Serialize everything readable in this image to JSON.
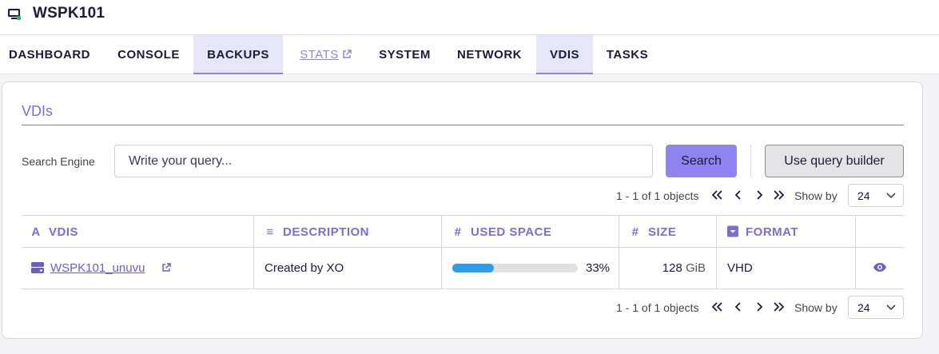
{
  "host": {
    "name": "WSPK101",
    "icon": "vm-console-icon"
  },
  "tabs": [
    {
      "label": "DASHBOARD",
      "active": false
    },
    {
      "label": "CONSOLE",
      "active": false
    },
    {
      "label": "BACKUPS",
      "active": true
    },
    {
      "label": "STATS",
      "active": false,
      "external": true
    },
    {
      "label": "SYSTEM",
      "active": false
    },
    {
      "label": "NETWORK",
      "active": false
    },
    {
      "label": "VDIS",
      "active": true
    },
    {
      "label": "TASKS",
      "active": false
    }
  ],
  "card": {
    "title": "VDIs"
  },
  "search": {
    "label": "Search Engine",
    "placeholder": "Write your query...",
    "search_button": "Search",
    "query_builder_button": "Use query builder"
  },
  "pagination": {
    "count_text": "1 - 1 of 1 objects",
    "show_by_label": "Show by",
    "show_by_value": "24"
  },
  "table": {
    "columns": [
      {
        "label": "VDIS",
        "icon": "text-type-icon"
      },
      {
        "label": "DESCRIPTION",
        "icon": "align-left-icon"
      },
      {
        "label": "USED SPACE",
        "icon": "hash-icon"
      },
      {
        "label": "SIZE",
        "icon": "hash-icon"
      },
      {
        "label": "FORMAT",
        "icon": "dropdown-square-icon"
      }
    ],
    "rows": [
      {
        "name": "WSPK101_unuvu",
        "description": "Created by XO",
        "used_space_percent": 33,
        "used_space_text": "33%",
        "size_value": "128",
        "size_unit": "GiB",
        "format": "VHD"
      }
    ]
  },
  "colors": {
    "accent": "#8f84f0",
    "accent_text": "#7a6fd0",
    "progress": "#2f9ee8",
    "tab_active_bg": "#e7e5f8"
  }
}
